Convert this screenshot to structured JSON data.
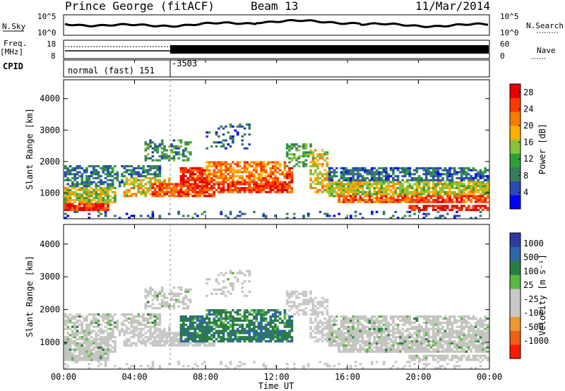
{
  "header": {
    "station": "Prince George (fitACF)",
    "beam": "Beam 13",
    "date": "11/Mar/2014"
  },
  "summary": {
    "nsky_label": "N.Sky",
    "nsky_ticks": [
      "10^5",
      "10^0"
    ],
    "nsearch_label": "N.Search",
    "nsearch_ticks": [
      "10^5",
      "10^0"
    ],
    "freq_label_1": "Freq.",
    "freq_label_2": "[MHz]",
    "freq_ticks": [
      "18",
      "8"
    ],
    "nave_label": "Nave",
    "nave_ticks": [
      "60",
      "0"
    ],
    "cpid_label": "CPID",
    "cpid_mode": "normal (fast) 151",
    "cpid_code": "-3503"
  },
  "colors": {
    "power_scale": [
      "#0000ff",
      "#2a48b8",
      "#377d5c",
      "#2f9e3a",
      "#88c23a",
      "#ffb000",
      "#ff7a00",
      "#ff3a00",
      "#e60000"
    ],
    "velocity_scale": [
      "#2e3aa0",
      "#2f66a8",
      "#2a7d40",
      "#5ab840",
      "#c8c8c8",
      "#c8c8c8",
      "#f09830",
      "#f06010",
      "#ff1a00"
    ],
    "ground_scatter": "#c4c4c0"
  },
  "chart_data": [
    {
      "type": "heatmap",
      "panel": "power",
      "ylabel": "Slant Range [km]",
      "ylim": [
        180,
        4600
      ],
      "yticks": [
        "1000",
        "2000",
        "3000",
        "4000"
      ],
      "xlim": [
        "00:00",
        "24:00"
      ],
      "colorbar_label": "Power [dB]",
      "colorbar_ticks": [
        "4",
        "8",
        "12",
        "16",
        "20",
        "24",
        "28"
      ],
      "scale_range": [
        0,
        30
      ]
    },
    {
      "type": "heatmap",
      "panel": "velocity",
      "ylabel": "Slant Range [km]",
      "ylim": [
        180,
        4600
      ],
      "yticks": [
        "1000",
        "2000",
        "3000",
        "4000"
      ],
      "xlabel": "Time UT",
      "xticks": [
        "00:00",
        "04:00",
        "08:00",
        "12:00",
        "16:00",
        "20:00",
        "00:00"
      ],
      "xlim": [
        "00:00",
        "24:00"
      ],
      "colorbar_label": "Velocity [m s⁻¹]",
      "colorbar_ticks": [
        "1000",
        "500",
        "100",
        "25",
        "-25",
        "-100",
        "-500",
        "-1000"
      ]
    }
  ]
}
